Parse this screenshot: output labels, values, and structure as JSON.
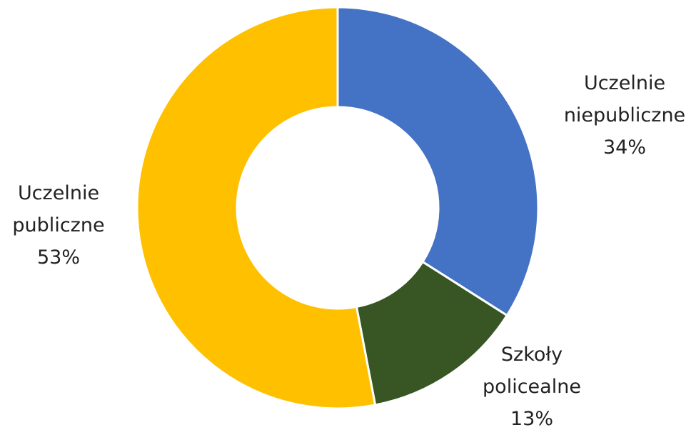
{
  "chart_data": {
    "type": "pie",
    "variant": "donut",
    "title": "",
    "slices": [
      {
        "label_lines": [
          "Uczelnie",
          "niepubliczne"
        ],
        "percent_label": "34%",
        "value": 34,
        "color": "#4472C4"
      },
      {
        "label_lines": [
          "Szkoły",
          "policealne"
        ],
        "percent_label": "13%",
        "value": 13,
        "color": "#375623"
      },
      {
        "label_lines": [
          "Uczelnie",
          "publiczne"
        ],
        "percent_label": "53%",
        "value": 53,
        "color": "#FFC000"
      }
    ],
    "start_angle": "12 o'clock",
    "direction": "clockwise",
    "slice_separator_color": "#ffffff",
    "legend": "none"
  }
}
